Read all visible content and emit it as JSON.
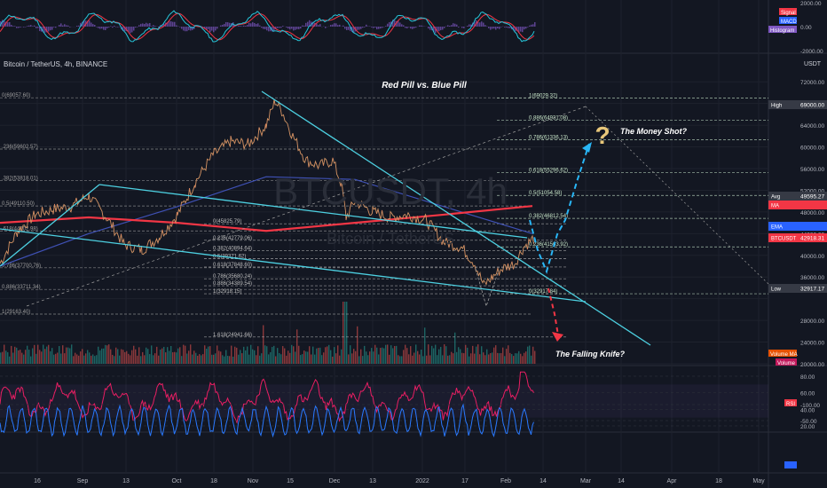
{
  "header": {
    "symbol_title": "Bitcoin / TetherUS, 4h, BINANCE",
    "currency": "USDT"
  },
  "watermark": {
    "ticker": "BTCUSDT, 4h",
    "name": "Bitcoin / TetherUS"
  },
  "annotations": {
    "top": "Red Pill vs. Blue Pill",
    "bull": "The Money Shot?",
    "bear": "The Falling Knife?",
    "question_mark": "?"
  },
  "chart_data": [
    {
      "type": "line",
      "panel": "macd",
      "legend": [
        "Signal",
        "MACD",
        "Histogram"
      ],
      "legend_colors": [
        "#f23645",
        "#2962ff",
        "#7e57c2"
      ],
      "yticks": [
        2000,
        0,
        -2000
      ],
      "ytick_labels": [
        "2000.00",
        "0.00",
        "-2000.00"
      ]
    },
    {
      "type": "candlestick",
      "panel": "price",
      "symbol": "Bitcoin / TetherUS, 4h, BINANCE",
      "ylim": [
        20000,
        74000
      ],
      "yticks": [
        72000,
        68000,
        64000,
        60000,
        56000,
        52000,
        48000,
        44000,
        40000,
        36000,
        32000,
        28000,
        24000,
        20000
      ],
      "ytick_labels": [
        "72000.00",
        "",
        "64000.00",
        "60000.00",
        "56000.00",
        "52000.00",
        "48000.00",
        "44000.00",
        "40000.00",
        "36000.00",
        "",
        "28000.00",
        "24000.00",
        "20000.00"
      ],
      "x_labels": [
        "16",
        "Sep",
        "13",
        "Oct",
        "18",
        "Nov",
        "15",
        "Dec",
        "13",
        "2022",
        "17",
        "Feb",
        "14",
        "Mar",
        "14",
        "Apr",
        "18",
        "May"
      ],
      "price_path": [
        [
          0,
          38500
        ],
        [
          20,
          44500
        ],
        [
          40,
          47500
        ],
        [
          60,
          48500
        ],
        [
          80,
          49000
        ],
        [
          100,
          51000
        ],
        [
          120,
          47000
        ],
        [
          140,
          42000
        ],
        [
          160,
          41000
        ],
        [
          180,
          43500
        ],
        [
          200,
          47500
        ],
        [
          220,
          53500
        ],
        [
          240,
          58500
        ],
        [
          260,
          61000
        ],
        [
          280,
          60500
        ],
        [
          300,
          64000
        ],
        [
          310,
          68500
        ],
        [
          318,
          66500
        ],
        [
          330,
          62000
        ],
        [
          345,
          57500
        ],
        [
          360,
          56500
        ],
        [
          375,
          57500
        ],
        [
          385,
          53000
        ],
        [
          390,
          47000
        ],
        [
          400,
          50000
        ],
        [
          420,
          48000
        ],
        [
          440,
          47000
        ],
        [
          460,
          47500
        ],
        [
          480,
          46500
        ],
        [
          500,
          42500
        ],
        [
          520,
          41500
        ],
        [
          535,
          38500
        ],
        [
          545,
          34500
        ],
        [
          555,
          36000
        ],
        [
          565,
          37500
        ],
        [
          580,
          38500
        ],
        [
          590,
          41500
        ],
        [
          600,
          43000
        ],
        [
          603,
          42918
        ]
      ],
      "ma_red": [
        [
          0,
          46000
        ],
        [
          100,
          47000
        ],
        [
          200,
          46000
        ],
        [
          300,
          44500
        ],
        [
          400,
          46000
        ],
        [
          500,
          47500
        ],
        [
          600,
          49100
        ]
      ],
      "ma_blue": [
        [
          0,
          38000
        ],
        [
          100,
          44000
        ],
        [
          200,
          49000
        ],
        [
          300,
          54500
        ],
        [
          400,
          54000
        ],
        [
          500,
          49000
        ],
        [
          600,
          44000
        ]
      ],
      "fib_levels_left": [
        {
          "label": "0(69057.60)",
          "value": 69057.6
        },
        {
          "label": ".236(59602.57)",
          "value": 59602.57
        },
        {
          "label": ".382(53818.01)",
          "value": 53818.01
        },
        {
          "label": "0.5(49110.50)",
          "value": 49110.5
        },
        {
          "label": ".618(44502.98)",
          "value": 44502.98
        },
        {
          "label": "0.786(37700.76)",
          "value": 37700.76
        },
        {
          "label": "0.886(33711.34)",
          "value": 33711.34
        },
        {
          "label": "1(29163.40)",
          "value": 29163.4
        }
      ],
      "fib_levels_mid": [
        {
          "label": "0(45825.79)",
          "value": 45825.79
        },
        {
          "label": "0.236(42779.06)",
          "value": 42779.06
        },
        {
          "label": "0.382(40894.64)",
          "value": 40894.64
        },
        {
          "label": "0.5(39371.62)",
          "value": 39371.62
        },
        {
          "label": "0.618(37848.60)",
          "value": 37848.6
        },
        {
          "label": "0.786(35680.24)",
          "value": 35680.24
        },
        {
          "label": "0.886(34389.54)",
          "value": 34389.54
        },
        {
          "label": "1(32918.15)",
          "value": 32918.15
        },
        {
          "label": "1.618(24941.66)",
          "value": 24941.66
        }
      ],
      "fib_levels_right": [
        {
          "label": "1(69029.32)",
          "value": 69029.32
        },
        {
          "label": "0.886(64931.08)",
          "value": 64931.08
        },
        {
          "label": "0.786(61336.13)",
          "value": 61336.13
        },
        {
          "label": "0.618(55296.62)",
          "value": 55296.62
        },
        {
          "label": "0.5(51054.58)",
          "value": 51054.58
        },
        {
          "label": "0.382(46812.54)",
          "value": 46812.54
        },
        {
          "label": "0.236(41563.92)",
          "value": 41563.92
        },
        {
          "label": "0(32917.84)",
          "value": 32917.84
        }
      ],
      "price_badges": [
        {
          "label": "High",
          "value": "69000.00",
          "color": "#363a45"
        },
        {
          "label": "Avg",
          "value": "49595.27",
          "color": "#363a45"
        },
        {
          "label": "MA",
          "value": "",
          "color": "#f23645"
        },
        {
          "label": "EMA",
          "value": "",
          "color": "#2962ff"
        },
        {
          "label": "BTCUSDT",
          "value": "42918.31",
          "color": "#f23645"
        },
        {
          "label": "Low",
          "value": "32917.17",
          "color": "#363a45"
        }
      ],
      "volume_legend": [
        "Volume MA",
        "Volume"
      ]
    },
    {
      "type": "line",
      "panel": "rsi",
      "legend": [
        "RSI"
      ],
      "yticks": [
        80,
        60,
        40,
        20
      ],
      "ytick_labels": [
        "80.00",
        "60.00",
        "40.00",
        "20.00"
      ]
    },
    {
      "type": "line",
      "panel": "oscillator",
      "yticks": [
        -50,
        -100
      ],
      "ytick_labels": [
        "-50.00",
        "-100.00"
      ]
    }
  ]
}
